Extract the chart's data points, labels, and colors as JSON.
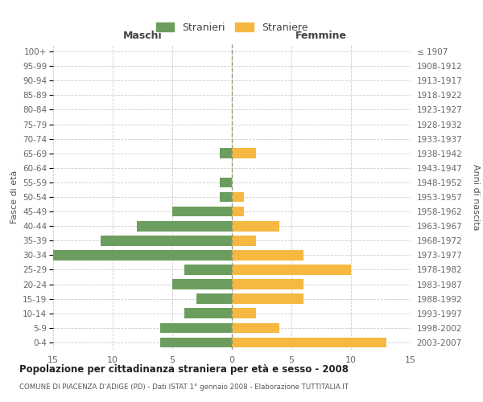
{
  "age_groups": [
    "0-4",
    "5-9",
    "10-14",
    "15-19",
    "20-24",
    "25-29",
    "30-34",
    "35-39",
    "40-44",
    "45-49",
    "50-54",
    "55-59",
    "60-64",
    "65-69",
    "70-74",
    "75-79",
    "80-84",
    "85-89",
    "90-94",
    "95-99",
    "100+"
  ],
  "birth_years": [
    "2003-2007",
    "1998-2002",
    "1993-1997",
    "1988-1992",
    "1983-1987",
    "1978-1982",
    "1973-1977",
    "1968-1972",
    "1963-1967",
    "1958-1962",
    "1953-1957",
    "1948-1952",
    "1943-1947",
    "1938-1942",
    "1933-1937",
    "1928-1932",
    "1923-1927",
    "1918-1922",
    "1913-1917",
    "1908-1912",
    "≤ 1907"
  ],
  "males": [
    6,
    6,
    4,
    3,
    5,
    4,
    15,
    11,
    8,
    5,
    1,
    1,
    0,
    1,
    0,
    0,
    0,
    0,
    0,
    0,
    0
  ],
  "females": [
    13,
    4,
    2,
    6,
    6,
    10,
    6,
    2,
    4,
    1,
    1,
    0,
    0,
    2,
    0,
    0,
    0,
    0,
    0,
    0,
    0
  ],
  "male_color": "#6b9e5e",
  "female_color": "#f5b942",
  "background_color": "#ffffff",
  "grid_color": "#cccccc",
  "title": "Popolazione per cittadinanza straniera per età e sesso - 2008",
  "subtitle": "COMUNE DI PIACENZA D'ADIGE (PD) - Dati ISTAT 1° gennaio 2008 - Elaborazione TUTTITALIA.IT",
  "xlabel_left": "Maschi",
  "xlabel_right": "Femmine",
  "ylabel_left": "Fasce di età",
  "ylabel_right": "Anni di nascita",
  "legend_male": "Stranieri",
  "legend_female": "Straniere",
  "xlim": 15
}
